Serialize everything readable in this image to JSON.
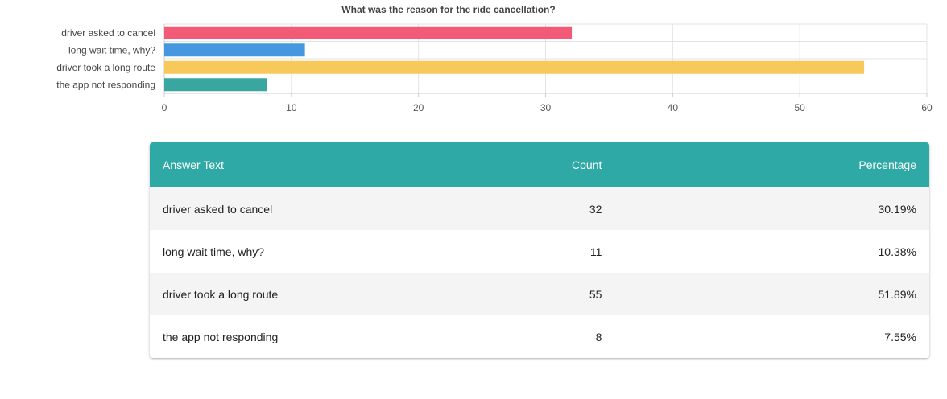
{
  "chart_data": {
    "type": "bar",
    "orientation": "horizontal",
    "title": "What was the reason for the ride cancellation?",
    "categories": [
      "driver asked to cancel",
      "long wait time, why?",
      "driver took a long route",
      "the app not responding"
    ],
    "values": [
      32,
      11,
      55,
      8
    ],
    "colors": [
      "#f25a78",
      "#4598e0",
      "#f7c85a",
      "#3aa6a0"
    ],
    "xlim": [
      0,
      60
    ],
    "xticks": [
      0,
      10,
      20,
      30,
      40,
      50,
      60
    ],
    "grid": true,
    "legend": "none"
  },
  "table": {
    "header_color": "#2ea9a5",
    "headers": {
      "answer_text": "Answer Text",
      "count": "Count",
      "percentage": "Percentage"
    },
    "rows": [
      {
        "answer": "driver asked to cancel",
        "count": "32",
        "percentage": "30.19%"
      },
      {
        "answer": "long wait time, why?",
        "count": "11",
        "percentage": "10.38%"
      },
      {
        "answer": "driver took a long route",
        "count": "55",
        "percentage": "51.89%"
      },
      {
        "answer": "the app not responding",
        "count": "8",
        "percentage": "7.55%"
      }
    ],
    "stripe_color": "#f4f4f4"
  }
}
